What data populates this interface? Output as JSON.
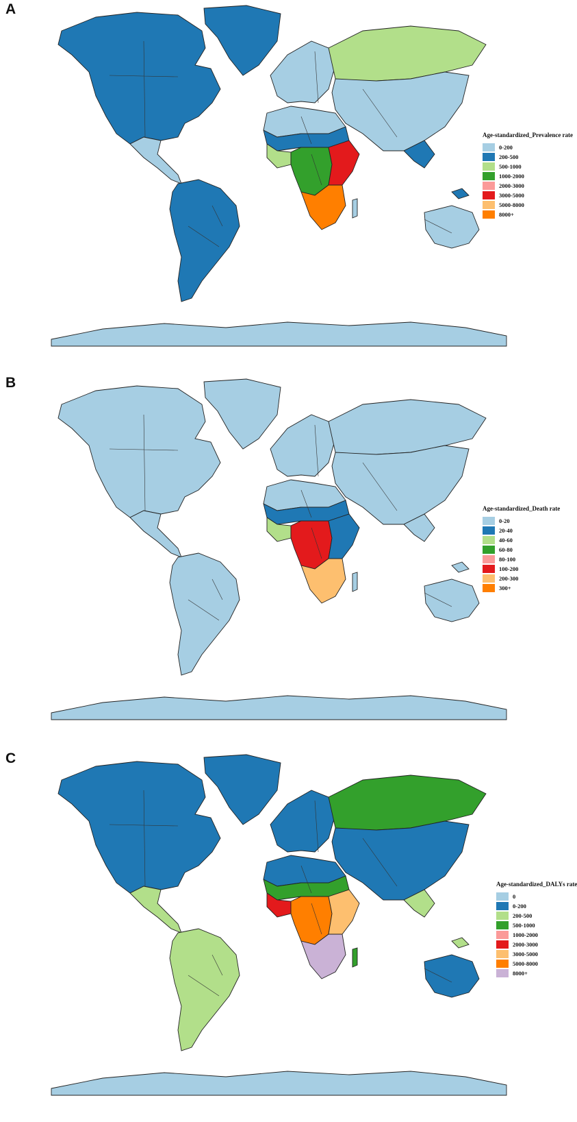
{
  "panels": [
    {
      "label": "A",
      "legend": {
        "title": "Age-standardized_Prevalence rate",
        "items": [
          {
            "label": "0-200",
            "color": "#a6cee3"
          },
          {
            "label": "200-500",
            "color": "#1f78b4"
          },
          {
            "label": "500-1000",
            "color": "#b2df8a"
          },
          {
            "label": "1000-2000",
            "color": "#33a02c"
          },
          {
            "label": "2000-3000",
            "color": "#fb9a99"
          },
          {
            "label": "3000-5000",
            "color": "#e31a1c"
          },
          {
            "label": "5000-8000",
            "color": "#fdbf6f"
          },
          {
            "label": "8000+",
            "color": "#ff7f00"
          }
        ]
      },
      "regions": {
        "north_america": "#1f78b4",
        "greenland": "#1f78b4",
        "central_america": "#a6cee3",
        "south_america": "#1f78b4",
        "europe": "#a6cee3",
        "russia": "#b2df8a",
        "asia": "#a6cee3",
        "north_africa": "#a6cee3",
        "sahel": "#1f78b4",
        "west_africa": "#b2df8a",
        "central_africa": "#33a02c",
        "east_africa": "#e31a1c",
        "southern_africa": "#ff7f00",
        "australia": "#a6cee3",
        "antarctica": "#a6cee3",
        "southeast_asia": "#1f78b4",
        "madagascar": "#a6cee3"
      }
    },
    {
      "label": "B",
      "legend": {
        "title": "Age-standardized_Death rate",
        "items": [
          {
            "label": "0-20",
            "color": "#a6cee3"
          },
          {
            "label": "20-40",
            "color": "#1f78b4"
          },
          {
            "label": "40-60",
            "color": "#b2df8a"
          },
          {
            "label": "60-80",
            "color": "#33a02c"
          },
          {
            "label": "80-100",
            "color": "#fb9a99"
          },
          {
            "label": "100-200",
            "color": "#e31a1c"
          },
          {
            "label": "200-300",
            "color": "#fdbf6f"
          },
          {
            "label": "300+",
            "color": "#ff7f00"
          }
        ]
      },
      "regions": {
        "north_america": "#a6cee3",
        "greenland": "#a6cee3",
        "central_america": "#a6cee3",
        "south_america": "#a6cee3",
        "europe": "#a6cee3",
        "russia": "#a6cee3",
        "asia": "#a6cee3",
        "north_africa": "#a6cee3",
        "sahel": "#1f78b4",
        "west_africa": "#b2df8a",
        "central_africa": "#e31a1c",
        "east_africa": "#1f78b4",
        "southern_africa": "#fdbf6f",
        "australia": "#a6cee3",
        "antarctica": "#a6cee3",
        "southeast_asia": "#a6cee3",
        "madagascar": "#a6cee3"
      }
    },
    {
      "label": "C",
      "legend": {
        "title": "Age-standardized_DALYs rate",
        "items": [
          {
            "label": "0",
            "color": "#a6cee3"
          },
          {
            "label": "0-200",
            "color": "#1f78b4"
          },
          {
            "label": "200-500",
            "color": "#b2df8a"
          },
          {
            "label": "500-1000",
            "color": "#33a02c"
          },
          {
            "label": "1000-2000",
            "color": "#fb9a99"
          },
          {
            "label": "2000-3000",
            "color": "#e31a1c"
          },
          {
            "label": "3000-5000",
            "color": "#fdbf6f"
          },
          {
            "label": "5000-8000",
            "color": "#ff7f00"
          },
          {
            "label": "8000+",
            "color": "#cab2d6"
          }
        ]
      },
      "regions": {
        "north_america": "#1f78b4",
        "greenland": "#1f78b4",
        "central_america": "#b2df8a",
        "south_america": "#b2df8a",
        "europe": "#1f78b4",
        "russia": "#33a02c",
        "asia": "#1f78b4",
        "north_africa": "#1f78b4",
        "sahel": "#33a02c",
        "west_africa": "#e31a1c",
        "central_africa": "#ff7f00",
        "east_africa": "#fdbf6f",
        "southern_africa": "#cab2d6",
        "australia": "#1f78b4",
        "antarctica": "#a6cee3",
        "southeast_asia": "#b2df8a",
        "madagascar": "#33a02c"
      }
    }
  ]
}
